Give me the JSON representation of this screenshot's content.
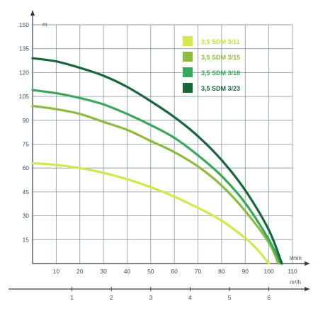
{
  "chart_data": {
    "type": "line",
    "y_unit": "m",
    "x_unit_primary": "l/min",
    "x_unit_secondary": "m³/h",
    "y_ticks": [
      "150",
      "135",
      "120",
      "105",
      "90",
      "75",
      "60",
      "45",
      "30",
      "15"
    ],
    "x_ticks_primary": [
      "10",
      "20",
      "30",
      "40",
      "50",
      "60",
      "70",
      "80",
      "90",
      "100",
      "110"
    ],
    "x_ticks_secondary": [
      "1",
      "2",
      "3",
      "4",
      "5",
      "6"
    ],
    "xlim": [
      0,
      110
    ],
    "ylim": [
      0,
      150
    ],
    "x2lim": [
      0,
      6.6
    ],
    "grid": true,
    "legend_position": "top-right",
    "series": [
      {
        "name": "3,5 SDM 3/11",
        "color": "#d4e84a",
        "legend_text_color": "#c8dc3c",
        "x": [
          0,
          10,
          20,
          30,
          40,
          50,
          60,
          70,
          80,
          90,
          95,
          100
        ],
        "y": [
          63,
          62,
          60,
          57,
          53,
          48,
          42,
          35,
          27,
          16,
          9,
          0
        ]
      },
      {
        "name": "3,5 SDM 3/15",
        "color": "#8dbb3e",
        "legend_text_color": "#8dbb3e",
        "x": [
          0,
          10,
          20,
          30,
          40,
          50,
          60,
          70,
          80,
          90,
          100,
          104
        ],
        "y": [
          99,
          97,
          94,
          89,
          84,
          77,
          70,
          61,
          49,
          33,
          13,
          0
        ]
      },
      {
        "name": "3,5 SDM 3/18",
        "color": "#3aa85a",
        "legend_text_color": "#3aa85a",
        "x": [
          0,
          10,
          20,
          30,
          40,
          50,
          60,
          70,
          80,
          90,
          100,
          105
        ],
        "y": [
          109,
          107,
          104,
          100,
          94,
          87,
          79,
          68,
          55,
          38,
          15,
          0
        ]
      },
      {
        "name": "3,5 SDM 3/23",
        "color": "#17673a",
        "legend_text_color": "#17673a",
        "x": [
          0,
          10,
          20,
          30,
          40,
          50,
          60,
          70,
          80,
          90,
          100,
          105.5
        ],
        "y": [
          129,
          127,
          123,
          118,
          111,
          102,
          92,
          80,
          65,
          46,
          21,
          0
        ]
      }
    ]
  }
}
